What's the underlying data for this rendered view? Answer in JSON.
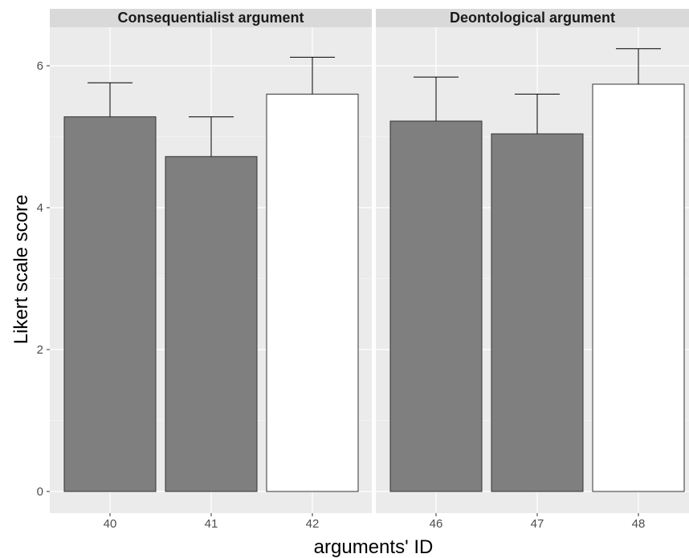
{
  "chart_data": {
    "type": "bar",
    "xlabel": "arguments' ID",
    "ylabel": "Likert scale score",
    "ylim": [
      0,
      6.6
    ],
    "yticks": [
      0,
      2,
      4,
      6
    ],
    "grid": true,
    "error_bars": "upper",
    "colors": {
      "dark": "#7f7f7f",
      "light": "#ffffff",
      "panel": "#ebebeb",
      "strip": "#d9d9d9",
      "grid": "#ffffff",
      "outline": "#333333"
    },
    "panels": [
      {
        "title": "Consequentialist argument",
        "categories": [
          "40",
          "41",
          "42"
        ],
        "values": [
          5.28,
          4.72,
          5.6
        ],
        "err_upper": [
          5.76,
          5.28,
          6.12
        ],
        "fills": [
          "dark",
          "dark",
          "light"
        ]
      },
      {
        "title": "Deontological argument",
        "categories": [
          "46",
          "47",
          "48"
        ],
        "values": [
          5.22,
          5.04,
          5.74
        ],
        "err_upper": [
          5.84,
          5.6,
          6.24
        ],
        "fills": [
          "dark",
          "dark",
          "light"
        ]
      }
    ]
  }
}
